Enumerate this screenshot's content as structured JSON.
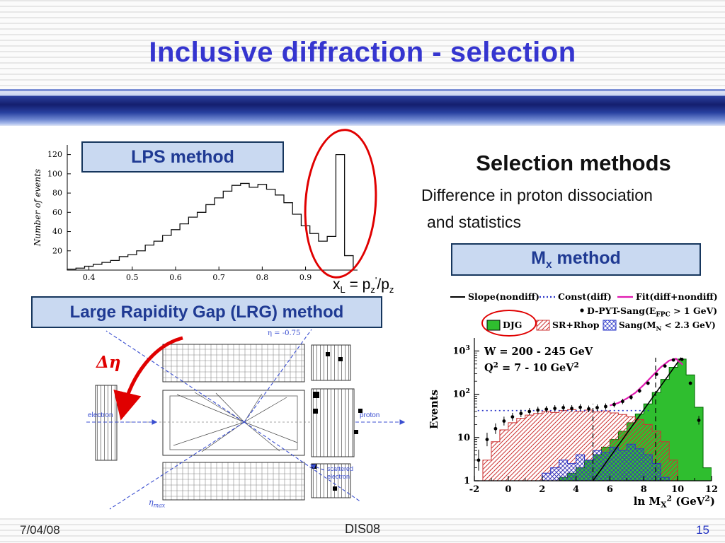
{
  "slide": {
    "title": "Inclusive diffraction - selection",
    "footer": {
      "date": "7/04/08",
      "conference": "DIS08",
      "page_number": "15"
    }
  },
  "left_panel": {
    "lps_box": "LPS method",
    "lrg_box": "Large Rapidity Gap (LRG) method",
    "xl_formula": [
      {
        "t": "x"
      },
      {
        "sub": "L"
      },
      {
        "t": " = p"
      },
      {
        "sub": "z"
      },
      {
        "sup": "'"
      },
      {
        "t": "/p"
      },
      {
        "sub": "z"
      }
    ],
    "diagram": {
      "delta_eta": "Δη",
      "electron": "electron",
      "proton": "proton",
      "scattered_electron": [
        "scattered",
        "electron"
      ],
      "eta_max": "η_{max}",
      "eta_right": "η = -0.75"
    }
  },
  "right_panel": {
    "heading": "Selection methods",
    "subline1": "Difference in proton dissociation",
    "subline2": "and statistics",
    "mx_box": [
      {
        "t": "M"
      },
      {
        "sub": "x"
      },
      {
        "t": " method"
      }
    ]
  },
  "chart_data": [
    {
      "id": "xl_histogram",
      "type": "bar",
      "title": "",
      "xlabel": "x_L = p_z'/p_z",
      "ylabel": "Number of events",
      "xlim": [
        0.35,
        1.02
      ],
      "ylim": [
        0,
        130
      ],
      "xticks": [
        0.4,
        0.5,
        0.6,
        0.7,
        0.8,
        0.9
      ],
      "yticks": [
        20,
        40,
        60,
        80,
        100,
        120
      ],
      "bin_start": 0.35,
      "bin_width": 0.02,
      "values": [
        1,
        2,
        4,
        6,
        8,
        10,
        14,
        16,
        20,
        26,
        30,
        36,
        42,
        48,
        55,
        60,
        68,
        75,
        82,
        88,
        90,
        86,
        89,
        84,
        78,
        70,
        58,
        46,
        38,
        30,
        35,
        120,
        15
      ]
    },
    {
      "id": "mx_plot",
      "type": "mixed-log-histogram",
      "xlabel": "ln M_{X}^{2} (GeV^{2})",
      "ylabel": "Events",
      "xlim": [
        -2,
        12
      ],
      "ylim_log": [
        1,
        2000
      ],
      "xticks": [
        -2,
        0,
        2,
        4,
        6,
        8,
        10,
        12
      ],
      "ytick_values": [
        1,
        10,
        100,
        1000
      ],
      "ytick_labels": [
        "1",
        "10",
        "10^{2}",
        "10^{3}"
      ],
      "annotations": [
        "W = 200 - 245 GeV",
        "Q^{2} = 7 - 10 GeV^{2}"
      ],
      "legend": {
        "slope": "Slope(nondiff)",
        "constd": "Const(diff)",
        "fit": "Fit(diff+nondiff)",
        "dpyt": "D-PYT-Sang(E_{FPC} > 1 GeV)",
        "djg": "DJG",
        "srrhop": "SR+Rhop",
        "sang": "Sang(M_{N} < 2.3 GeV)"
      },
      "colors": {
        "djg": "#2fbe2f",
        "sr": "#cc3333",
        "sang": "#2a35c8",
        "fit": "#e019b0",
        "slope": "#000000"
      },
      "djg_bins": {
        "start": 3.0,
        "width": 0.5,
        "values": [
          1.2,
          1.5,
          2,
          3,
          4,
          6,
          9,
          14,
          22,
          35,
          60,
          110,
          220,
          420,
          650,
          280,
          50,
          2
        ]
      },
      "sr_bins": {
        "start": -1.5,
        "width": 0.5,
        "values": [
          3,
          8,
          15,
          22,
          28,
          33,
          36,
          40,
          38,
          42,
          44,
          40,
          43,
          39,
          41,
          37,
          34,
          30,
          26,
          20,
          14,
          8,
          3
        ]
      },
      "sang_bins": {
        "start": 2.0,
        "width": 0.5,
        "values": [
          1.5,
          2,
          3,
          2.5,
          4,
          3,
          5,
          4.5,
          6,
          5,
          7,
          5.5,
          4,
          2.5,
          1.2
        ]
      },
      "points": [
        [
          -1.75,
          3
        ],
        [
          -1.25,
          9
        ],
        [
          -0.75,
          16
        ],
        [
          -0.25,
          24
        ],
        [
          0.25,
          30
        ],
        [
          0.75,
          36
        ],
        [
          1.25,
          40
        ],
        [
          1.75,
          43
        ],
        [
          2.25,
          45
        ],
        [
          2.75,
          47
        ],
        [
          3.25,
          49
        ],
        [
          3.75,
          47
        ],
        [
          4.25,
          50
        ],
        [
          4.75,
          46
        ],
        [
          5.25,
          49
        ],
        [
          5.75,
          52
        ],
        [
          6.25,
          58
        ],
        [
          6.75,
          68
        ],
        [
          7.25,
          85
        ],
        [
          7.75,
          120
        ],
        [
          8.25,
          180
        ],
        [
          8.75,
          290
        ],
        [
          9.25,
          450
        ],
        [
          9.75,
          620
        ],
        [
          10.25,
          640
        ],
        [
          10.75,
          180
        ],
        [
          11.25,
          25
        ]
      ],
      "slope_line": [
        [
          5.0,
          1
        ],
        [
          10.2,
          700
        ]
      ],
      "const_line": [
        [
          -1.8,
          42
        ],
        [
          8.3,
          42
        ]
      ],
      "fit_curve": [
        [
          6.0,
          55
        ],
        [
          6.5,
          63
        ],
        [
          7.0,
          80
        ],
        [
          7.5,
          108
        ],
        [
          8.0,
          165
        ],
        [
          8.5,
          265
        ],
        [
          9.0,
          420
        ],
        [
          9.5,
          600
        ],
        [
          9.9,
          665
        ],
        [
          10.3,
          480
        ]
      ],
      "dashed_x": [
        5.0,
        8.7
      ],
      "dashed_heights": [
        60,
        700
      ]
    }
  ]
}
